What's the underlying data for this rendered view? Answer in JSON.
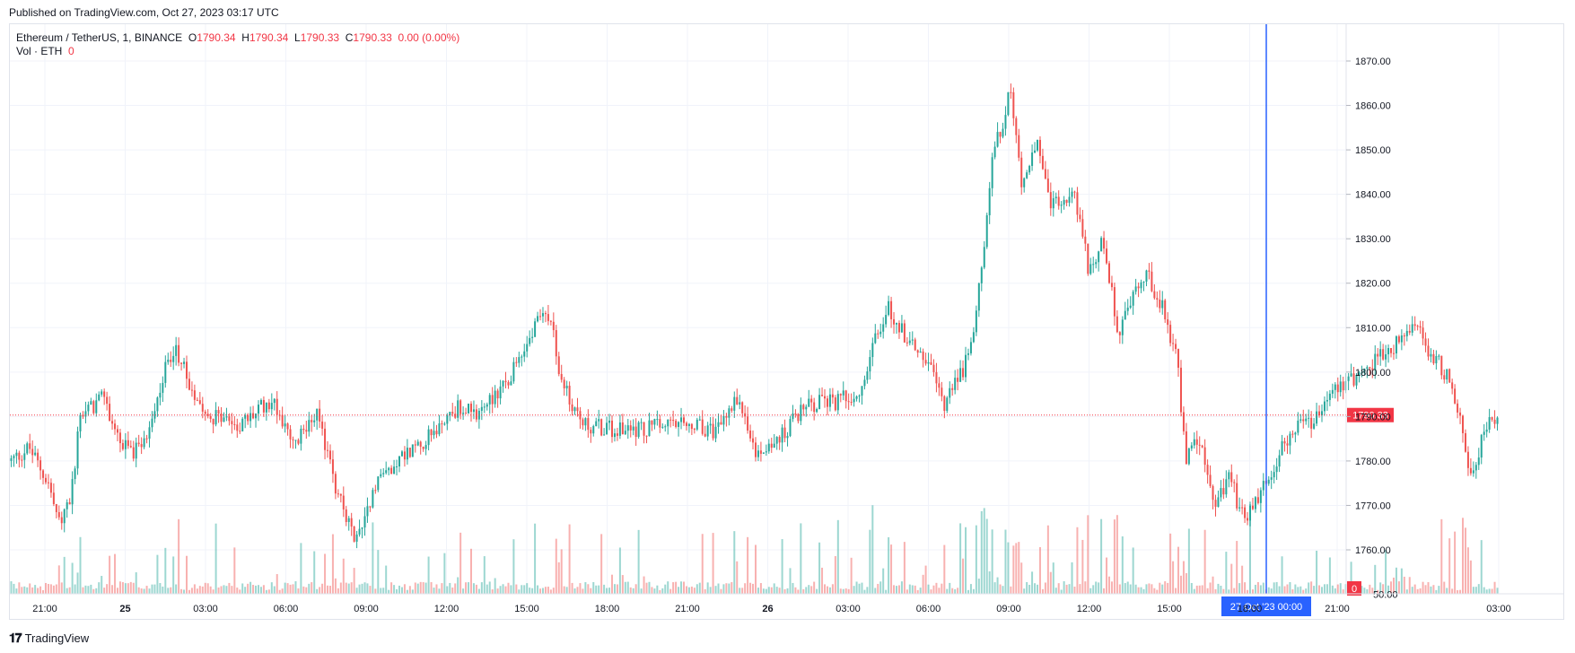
{
  "header": {
    "published": "Published on TradingView.com, Oct 27, 2023 03:17 UTC"
  },
  "legend": {
    "symbol": "Ethereum / TetherUS, 1, BINANCE",
    "o_label": "O",
    "o_value": "1790.34",
    "h_label": "H",
    "h_value": "1790.34",
    "l_label": "L",
    "l_value": "1790.33",
    "c_label": "C",
    "c_value": "1790.33",
    "change": "0.00 (0.00%)",
    "vol_label": "Vol · ETH",
    "vol_value": "0"
  },
  "footer": {
    "logo_icon": "tradingview-logo-icon",
    "logo_text": "TradingView"
  },
  "colors": {
    "up": "#26a69a",
    "down": "#ef5350",
    "crosshair": "#2962ff",
    "price_line": "#f23645",
    "grid": "#f0f3fa"
  },
  "chart_data": {
    "type": "candlestick",
    "title": "Ethereum / TetherUS, 1, BINANCE",
    "ylim": [
      1750,
      1875
    ],
    "y_ticks": [
      1760,
      1770,
      1780,
      1790,
      1800,
      1810,
      1820,
      1830,
      1840,
      1850,
      1860,
      1870
    ],
    "y_tick_labels": [
      "1760.00",
      "1770.00",
      "1780.00",
      "1790.00",
      "1800.00",
      "1810.00",
      "1820.00",
      "1830.00",
      "1840.00",
      "1850.00",
      "1860.00",
      "1870.00"
    ],
    "y_bottom_partial_label": "50.00",
    "x_ticks": [
      {
        "label": "21:00",
        "bold": false
      },
      {
        "label": "25",
        "bold": true
      },
      {
        "label": "03:00",
        "bold": false
      },
      {
        "label": "06:00",
        "bold": false
      },
      {
        "label": "09:00",
        "bold": false
      },
      {
        "label": "12:00",
        "bold": false
      },
      {
        "label": "15:00",
        "bold": false
      },
      {
        "label": "18:00",
        "bold": false
      },
      {
        "label": "21:00",
        "bold": false
      },
      {
        "label": "26",
        "bold": true
      },
      {
        "label": "03:00",
        "bold": false
      },
      {
        "label": "06:00",
        "bold": false
      },
      {
        "label": "09:00",
        "bold": false
      },
      {
        "label": "12:00",
        "bold": false
      },
      {
        "label": "15:00",
        "bold": false
      },
      {
        "label": "18:00",
        "bold": false
      },
      {
        "label": "21:00",
        "bold": false
      },
      {
        "label": "03:00",
        "bold": false
      }
    ],
    "price_path": [
      {
        "t": 0,
        "p": 1780
      },
      {
        "t": 0.012,
        "p": 1783
      },
      {
        "t": 0.025,
        "p": 1775
      },
      {
        "t": 0.032,
        "p": 1766
      },
      {
        "t": 0.04,
        "p": 1771
      },
      {
        "t": 0.046,
        "p": 1790
      },
      {
        "t": 0.062,
        "p": 1794
      },
      {
        "t": 0.075,
        "p": 1783
      },
      {
        "t": 0.088,
        "p": 1782
      },
      {
        "t": 0.1,
        "p": 1797
      },
      {
        "t": 0.11,
        "p": 1806
      },
      {
        "t": 0.12,
        "p": 1797
      },
      {
        "t": 0.135,
        "p": 1790
      },
      {
        "t": 0.155,
        "p": 1788
      },
      {
        "t": 0.175,
        "p": 1794
      },
      {
        "t": 0.19,
        "p": 1783
      },
      {
        "t": 0.205,
        "p": 1791
      },
      {
        "t": 0.215,
        "p": 1778
      },
      {
        "t": 0.225,
        "p": 1767
      },
      {
        "t": 0.232,
        "p": 1762
      },
      {
        "t": 0.245,
        "p": 1775
      },
      {
        "t": 0.262,
        "p": 1781
      },
      {
        "t": 0.28,
        "p": 1785
      },
      {
        "t": 0.3,
        "p": 1792
      },
      {
        "t": 0.315,
        "p": 1791
      },
      {
        "t": 0.335,
        "p": 1799
      },
      {
        "t": 0.35,
        "p": 1808
      },
      {
        "t": 0.36,
        "p": 1815
      },
      {
        "t": 0.365,
        "p": 1809
      },
      {
        "t": 0.37,
        "p": 1798
      },
      {
        "t": 0.385,
        "p": 1788
      },
      {
        "t": 0.41,
        "p": 1787
      },
      {
        "t": 0.445,
        "p": 1788
      },
      {
        "t": 0.475,
        "p": 1787
      },
      {
        "t": 0.49,
        "p": 1794
      },
      {
        "t": 0.5,
        "p": 1781
      },
      {
        "t": 0.52,
        "p": 1786
      },
      {
        "t": 0.535,
        "p": 1793
      },
      {
        "t": 0.555,
        "p": 1793
      },
      {
        "t": 0.57,
        "p": 1796
      },
      {
        "t": 0.582,
        "p": 1808
      },
      {
        "t": 0.59,
        "p": 1815
      },
      {
        "t": 0.6,
        "p": 1809
      },
      {
        "t": 0.615,
        "p": 1803
      },
      {
        "t": 0.628,
        "p": 1793
      },
      {
        "t": 0.64,
        "p": 1800
      },
      {
        "t": 0.648,
        "p": 1810
      },
      {
        "t": 0.655,
        "p": 1830
      },
      {
        "t": 0.66,
        "p": 1850
      },
      {
        "t": 0.667,
        "p": 1855
      },
      {
        "t": 0.672,
        "p": 1863
      },
      {
        "t": 0.68,
        "p": 1843
      },
      {
        "t": 0.69,
        "p": 1852
      },
      {
        "t": 0.7,
        "p": 1838
      },
      {
        "t": 0.715,
        "p": 1841
      },
      {
        "t": 0.725,
        "p": 1823
      },
      {
        "t": 0.735,
        "p": 1830
      },
      {
        "t": 0.745,
        "p": 1808
      },
      {
        "t": 0.755,
        "p": 1818
      },
      {
        "t": 0.765,
        "p": 1822
      },
      {
        "t": 0.775,
        "p": 1814
      },
      {
        "t": 0.785,
        "p": 1802
      },
      {
        "t": 0.79,
        "p": 1780
      },
      {
        "t": 0.8,
        "p": 1785
      },
      {
        "t": 0.81,
        "p": 1770
      },
      {
        "t": 0.82,
        "p": 1776
      },
      {
        "t": 0.83,
        "p": 1766
      },
      {
        "t": 0.845,
        "p": 1776
      },
      {
        "t": 0.86,
        "p": 1786
      },
      {
        "t": 0.875,
        "p": 1789
      },
      {
        "t": 0.89,
        "p": 1797
      },
      {
        "t": 0.905,
        "p": 1799
      },
      {
        "t": 0.92,
        "p": 1803
      },
      {
        "t": 0.935,
        "p": 1807
      },
      {
        "t": 0.945,
        "p": 1810
      },
      {
        "t": 0.955,
        "p": 1804
      },
      {
        "t": 0.965,
        "p": 1800
      },
      {
        "t": 0.975,
        "p": 1790
      },
      {
        "t": 0.983,
        "p": 1775
      },
      {
        "t": 0.99,
        "p": 1786
      },
      {
        "t": 1.0,
        "p": 1791
      }
    ],
    "volume_max_hint": 1,
    "last_price": "1790.33",
    "last_price_value": 1790.33,
    "last_volume": "0",
    "crosshair_time_label": "27 Oct '23   00:00",
    "crosshair_time_fraction": 0.939
  }
}
